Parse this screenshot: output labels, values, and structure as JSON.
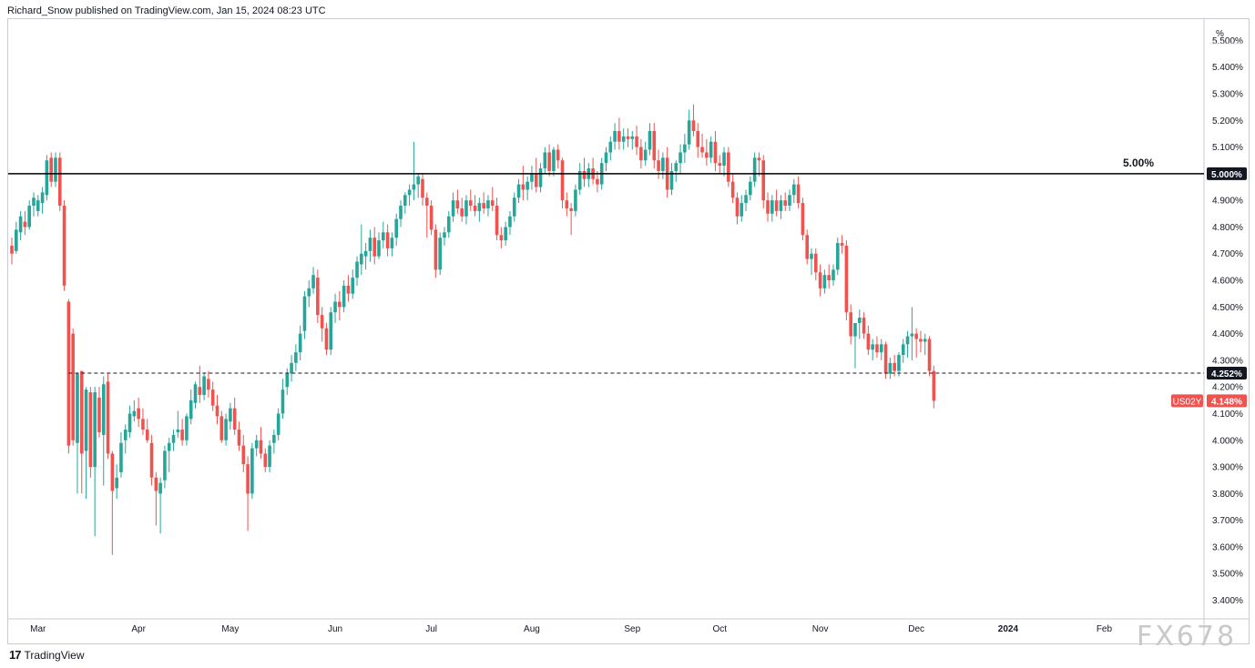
{
  "header": {
    "text": "Richard_Snow published on TradingView.com, Jan 15, 2024 08:23 UTC"
  },
  "footer": {
    "logo_text": "TradingView"
  },
  "watermark": {
    "text": "FX678"
  },
  "colors": {
    "up": "#26a69a",
    "down": "#ef5350",
    "resistance": "#000000",
    "level_line": "#131722",
    "price_tag": "#ef5350"
  },
  "chart_data": {
    "type": "candlestick",
    "symbol": "US02Y",
    "unit": "%",
    "y_unit_label": "%",
    "ylim": [
      3.33,
      5.58
    ],
    "y_ticks": [
      3.4,
      3.5,
      3.6,
      3.7,
      3.8,
      3.9,
      4.0,
      4.1,
      4.2,
      4.3,
      4.4,
      4.5,
      4.6,
      4.7,
      4.8,
      4.9,
      5.0,
      5.1,
      5.2,
      5.3,
      5.4,
      5.5
    ],
    "y_tick_labels": [
      "3.400%",
      "3.500%",
      "3.600%",
      "3.700%",
      "3.800%",
      "3.900%",
      "4.000%",
      "4.100%",
      "4.200%",
      "4.300%",
      "4.400%",
      "4.500%",
      "4.600%",
      "4.700%",
      "4.800%",
      "4.900%",
      "5.000%",
      "5.100%",
      "5.200%",
      "5.300%",
      "5.400%",
      "5.500%"
    ],
    "x_labels": [
      "Mar",
      "Apr",
      "May",
      "Jun",
      "Jul",
      "Aug",
      "Sep",
      "Oct",
      "Nov",
      "Dec",
      "2024",
      "Feb"
    ],
    "x_label_index": [
      6,
      29,
      50,
      74,
      96,
      119,
      142,
      162,
      185,
      207,
      228,
      250
    ],
    "x_index_range": [
      0,
      272
    ],
    "horizontal_lines": [
      {
        "value": 5.0,
        "label": "5.00%",
        "axis_tag": "5.000%",
        "style": "solid"
      },
      {
        "value": 4.252,
        "axis_tag": "4.252%",
        "style": "dashed"
      }
    ],
    "last_price": {
      "symbol": "US02Y",
      "value": 4.148,
      "tag": "4.148%"
    },
    "candles": [
      [
        4.73,
        4.76,
        4.66,
        4.7
      ],
      [
        4.71,
        4.82,
        4.7,
        4.79
      ],
      [
        4.78,
        4.86,
        4.75,
        4.84
      ],
      [
        4.82,
        4.86,
        4.77,
        4.8
      ],
      [
        4.8,
        4.9,
        4.79,
        4.88
      ],
      [
        4.88,
        4.93,
        4.84,
        4.91
      ],
      [
        4.86,
        4.92,
        4.84,
        4.9
      ],
      [
        4.89,
        4.95,
        4.85,
        4.93
      ],
      [
        4.92,
        5.07,
        4.9,
        5.05
      ],
      [
        5.06,
        5.08,
        4.95,
        4.97
      ],
      [
        4.97,
        5.08,
        4.95,
        5.06
      ],
      [
        5.06,
        5.08,
        4.86,
        4.88
      ],
      [
        4.88,
        4.9,
        4.56,
        4.58
      ],
      [
        4.52,
        4.53,
        3.95,
        3.98
      ],
      [
        4.4,
        4.42,
        3.98,
        4.0
      ],
      [
        3.99,
        4.25,
        3.8,
        4.25
      ],
      [
        4.26,
        4.26,
        3.8,
        3.95
      ],
      [
        3.96,
        4.2,
        3.78,
        4.19
      ],
      [
        4.18,
        4.2,
        3.86,
        3.9
      ],
      [
        3.9,
        4.2,
        3.64,
        4.18
      ],
      [
        4.16,
        4.2,
        4.01,
        4.03
      ],
      [
        4.02,
        4.24,
        3.83,
        4.21
      ],
      [
        4.22,
        4.25,
        3.93,
        3.95
      ],
      [
        3.95,
        3.96,
        3.57,
        3.81
      ],
      [
        3.82,
        3.91,
        3.78,
        3.86
      ],
      [
        3.88,
        4.03,
        3.86,
        3.99
      ],
      [
        4.0,
        4.06,
        3.95,
        4.04
      ],
      [
        4.03,
        4.13,
        4.01,
        4.1
      ],
      [
        4.09,
        4.15,
        4.07,
        4.11
      ],
      [
        4.12,
        4.16,
        4.05,
        4.08
      ],
      [
        4.08,
        4.12,
        4.02,
        4.04
      ],
      [
        4.04,
        4.08,
        3.99,
        4.0
      ],
      [
        3.99,
        4.02,
        3.83,
        3.86
      ],
      [
        3.86,
        3.88,
        3.68,
        3.81
      ],
      [
        3.8,
        3.86,
        3.65,
        3.84
      ],
      [
        3.85,
        3.98,
        3.82,
        3.96
      ],
      [
        3.96,
        4.01,
        3.88,
        3.99
      ],
      [
        3.99,
        4.04,
        3.96,
        4.02
      ],
      [
        4.03,
        4.11,
        4.01,
        4.04
      ],
      [
        4.04,
        4.08,
        3.98,
        4.0
      ],
      [
        4.0,
        4.1,
        3.98,
        4.09
      ],
      [
        4.08,
        4.19,
        4.06,
        4.15
      ],
      [
        4.14,
        4.22,
        4.12,
        4.21
      ],
      [
        4.2,
        4.28,
        4.14,
        4.17
      ],
      [
        4.17,
        4.25,
        4.15,
        4.24
      ],
      [
        4.23,
        4.26,
        4.16,
        4.19
      ],
      [
        4.19,
        4.22,
        4.11,
        4.13
      ],
      [
        4.13,
        4.17,
        4.06,
        4.09
      ],
      [
        4.09,
        4.11,
        3.99,
        4.0
      ],
      [
        4.0,
        4.1,
        3.98,
        4.08
      ],
      [
        4.07,
        4.14,
        4.04,
        4.12
      ],
      [
        4.12,
        4.16,
        4.02,
        4.04
      ],
      [
        4.04,
        4.07,
        3.96,
        3.98
      ],
      [
        3.98,
        4.02,
        3.88,
        3.91
      ],
      [
        3.91,
        3.94,
        3.66,
        3.8
      ],
      [
        3.8,
        3.99,
        3.78,
        3.97
      ],
      [
        3.97,
        4.02,
        3.94,
        4.0
      ],
      [
        4.0,
        4.05,
        3.93,
        3.95
      ],
      [
        3.95,
        3.97,
        3.88,
        3.9
      ],
      [
        3.9,
        4.0,
        3.88,
        3.98
      ],
      [
        3.99,
        4.04,
        3.95,
        4.02
      ],
      [
        4.02,
        4.12,
        4.0,
        4.1
      ],
      [
        4.1,
        4.23,
        4.08,
        4.19
      ],
      [
        4.2,
        4.27,
        4.17,
        4.25
      ],
      [
        4.25,
        4.32,
        4.22,
        4.29
      ],
      [
        4.29,
        4.36,
        4.26,
        4.33
      ],
      [
        4.33,
        4.43,
        4.3,
        4.4
      ],
      [
        4.41,
        4.56,
        4.38,
        4.54
      ],
      [
        4.54,
        4.6,
        4.5,
        4.57
      ],
      [
        4.57,
        4.65,
        4.55,
        4.62
      ],
      [
        4.61,
        4.64,
        4.44,
        4.47
      ],
      [
        4.47,
        4.5,
        4.37,
        4.42
      ],
      [
        4.42,
        4.44,
        4.32,
        4.34
      ],
      [
        4.34,
        4.5,
        4.32,
        4.48
      ],
      [
        4.48,
        4.55,
        4.44,
        4.52
      ],
      [
        4.52,
        4.56,
        4.45,
        4.5
      ],
      [
        4.5,
        4.6,
        4.48,
        4.58
      ],
      [
        4.58,
        4.62,
        4.52,
        4.55
      ],
      [
        4.55,
        4.64,
        4.53,
        4.61
      ],
      [
        4.61,
        4.69,
        4.58,
        4.67
      ],
      [
        4.66,
        4.81,
        4.62,
        4.7
      ],
      [
        4.69,
        4.74,
        4.64,
        4.71
      ],
      [
        4.71,
        4.79,
        4.67,
        4.76
      ],
      [
        4.76,
        4.8,
        4.66,
        4.69
      ],
      [
        4.69,
        4.78,
        4.68,
        4.75
      ],
      [
        4.75,
        4.82,
        4.72,
        4.78
      ],
      [
        4.78,
        4.81,
        4.69,
        4.72
      ],
      [
        4.72,
        4.78,
        4.69,
        4.76
      ],
      [
        4.76,
        4.85,
        4.73,
        4.83
      ],
      [
        4.83,
        4.9,
        4.8,
        4.88
      ],
      [
        4.88,
        4.93,
        4.85,
        4.92
      ],
      [
        4.92,
        4.96,
        4.88,
        4.94
      ],
      [
        4.94,
        5.12,
        4.9,
        4.96
      ],
      [
        4.96,
        5.0,
        4.91,
        4.99
      ],
      [
        4.98,
        5.0,
        4.88,
        4.91
      ],
      [
        4.91,
        4.93,
        4.76,
        4.88
      ],
      [
        4.88,
        4.9,
        4.77,
        4.79
      ],
      [
        4.79,
        4.81,
        4.61,
        4.64
      ],
      [
        4.64,
        4.78,
        4.62,
        4.76
      ],
      [
        4.76,
        4.8,
        4.73,
        4.78
      ],
      [
        4.78,
        4.86,
        4.76,
        4.84
      ],
      [
        4.84,
        4.93,
        4.82,
        4.9
      ],
      [
        4.9,
        4.94,
        4.85,
        4.87
      ],
      [
        4.87,
        4.91,
        4.82,
        4.84
      ],
      [
        4.84,
        4.92,
        4.81,
        4.9
      ],
      [
        4.9,
        4.94,
        4.86,
        4.88
      ],
      [
        4.88,
        4.92,
        4.84,
        4.86
      ],
      [
        4.86,
        4.91,
        4.82,
        4.89
      ],
      [
        4.89,
        4.93,
        4.85,
        4.87
      ],
      [
        4.87,
        4.92,
        4.84,
        4.9
      ],
      [
        4.9,
        4.95,
        4.86,
        4.88
      ],
      [
        4.88,
        4.91,
        4.75,
        4.77
      ],
      [
        4.77,
        4.8,
        4.72,
        4.75
      ],
      [
        4.75,
        4.82,
        4.73,
        4.8
      ],
      [
        4.8,
        4.86,
        4.77,
        4.84
      ],
      [
        4.84,
        4.93,
        4.82,
        4.91
      ],
      [
        4.91,
        4.98,
        4.89,
        4.96
      ],
      [
        4.96,
        5.03,
        4.9,
        4.94
      ],
      [
        4.94,
        4.99,
        4.9,
        4.97
      ],
      [
        4.97,
        5.03,
        4.94,
        5.0
      ],
      [
        5.0,
        5.06,
        4.93,
        4.95
      ],
      [
        4.95,
        5.04,
        4.93,
        5.02
      ],
      [
        5.02,
        5.1,
        5.0,
        5.08
      ],
      [
        5.08,
        5.11,
        4.99,
        5.01
      ],
      [
        5.01,
        5.1,
        4.99,
        5.09
      ],
      [
        5.09,
        5.11,
        5.02,
        5.05
      ],
      [
        5.05,
        5.06,
        4.87,
        4.9
      ],
      [
        4.9,
        4.93,
        4.84,
        4.87
      ],
      [
        4.87,
        4.89,
        4.77,
        4.86
      ],
      [
        4.86,
        4.96,
        4.84,
        4.94
      ],
      [
        4.94,
        5.04,
        4.92,
        5.01
      ],
      [
        5.01,
        5.06,
        4.95,
        4.98
      ],
      [
        4.98,
        5.04,
        4.95,
        5.02
      ],
      [
        5.02,
        5.06,
        4.96,
        4.98
      ],
      [
        4.98,
        5.01,
        4.93,
        4.96
      ],
      [
        4.96,
        5.06,
        4.94,
        5.04
      ],
      [
        5.04,
        5.1,
        5.01,
        5.08
      ],
      [
        5.08,
        5.14,
        5.05,
        5.12
      ],
      [
        5.12,
        5.19,
        5.09,
        5.16
      ],
      [
        5.16,
        5.21,
        5.09,
        5.12
      ],
      [
        5.12,
        5.17,
        5.09,
        5.14
      ],
      [
        5.14,
        5.17,
        5.1,
        5.13
      ],
      [
        5.13,
        5.16,
        5.09,
        5.14
      ],
      [
        5.14,
        5.18,
        5.07,
        5.1
      ],
      [
        5.1,
        5.13,
        5.02,
        5.05
      ],
      [
        5.05,
        5.12,
        5.03,
        5.09
      ],
      [
        5.09,
        5.19,
        5.07,
        5.16
      ],
      [
        5.16,
        5.19,
        5.02,
        5.05
      ],
      [
        5.05,
        5.09,
        4.98,
        5.01
      ],
      [
        5.01,
        5.08,
        4.98,
        5.06
      ],
      [
        5.06,
        5.1,
        4.91,
        4.94
      ],
      [
        4.94,
        5.04,
        4.92,
        5.01
      ],
      [
        5.01,
        5.05,
        4.97,
        5.04
      ],
      [
        5.04,
        5.11,
        5.0,
        5.08
      ],
      [
        5.08,
        5.15,
        5.04,
        5.11
      ],
      [
        5.11,
        5.24,
        5.09,
        5.2
      ],
      [
        5.2,
        5.26,
        5.14,
        5.16
      ],
      [
        5.16,
        5.19,
        5.06,
        5.1
      ],
      [
        5.1,
        5.15,
        5.06,
        5.08
      ],
      [
        5.08,
        5.13,
        5.03,
        5.06
      ],
      [
        5.06,
        5.14,
        5.04,
        5.12
      ],
      [
        5.12,
        5.16,
        5.01,
        5.04
      ],
      [
        5.04,
        5.07,
        5.0,
        5.03
      ],
      [
        5.03,
        5.1,
        4.99,
        5.08
      ],
      [
        5.08,
        5.1,
        4.95,
        4.97
      ],
      [
        4.97,
        5.0,
        4.89,
        4.91
      ],
      [
        4.91,
        4.93,
        4.81,
        4.84
      ],
      [
        4.84,
        4.92,
        4.82,
        4.89
      ],
      [
        4.89,
        4.94,
        4.86,
        4.92
      ],
      [
        4.92,
        4.99,
        4.9,
        4.97
      ],
      [
        4.97,
        5.08,
        4.95,
        5.06
      ],
      [
        5.06,
        5.08,
        4.99,
        5.05
      ],
      [
        5.05,
        5.07,
        4.87,
        4.9
      ],
      [
        4.9,
        4.93,
        4.82,
        4.85
      ],
      [
        4.85,
        4.92,
        4.82,
        4.9
      ],
      [
        4.9,
        4.94,
        4.84,
        4.86
      ],
      [
        4.86,
        4.92,
        4.83,
        4.9
      ],
      [
        4.9,
        4.93,
        4.86,
        4.88
      ],
      [
        4.88,
        4.94,
        4.86,
        4.92
      ],
      [
        4.92,
        4.98,
        4.89,
        4.96
      ],
      [
        4.96,
        4.99,
        4.87,
        4.89
      ],
      [
        4.89,
        4.91,
        4.75,
        4.77
      ],
      [
        4.77,
        4.79,
        4.66,
        4.68
      ],
      [
        4.68,
        4.72,
        4.62,
        4.7
      ],
      [
        4.7,
        4.72,
        4.6,
        4.63
      ],
      [
        4.63,
        4.66,
        4.54,
        4.57
      ],
      [
        4.57,
        4.64,
        4.55,
        4.62
      ],
      [
        4.62,
        4.66,
        4.57,
        4.6
      ],
      [
        4.6,
        4.66,
        4.58,
        4.64
      ],
      [
        4.64,
        4.76,
        4.62,
        4.74
      ],
      [
        4.74,
        4.77,
        4.7,
        4.73
      ],
      [
        4.73,
        4.75,
        4.45,
        4.48
      ],
      [
        4.48,
        4.51,
        4.36,
        4.39
      ],
      [
        4.39,
        4.42,
        4.27,
        4.44
      ],
      [
        4.44,
        4.49,
        4.38,
        4.46
      ],
      [
        4.46,
        4.48,
        4.38,
        4.4
      ],
      [
        4.4,
        4.43,
        4.32,
        4.34
      ],
      [
        4.34,
        4.38,
        4.3,
        4.36
      ],
      [
        4.36,
        4.39,
        4.31,
        4.33
      ],
      [
        4.33,
        4.38,
        4.3,
        4.36
      ],
      [
        4.36,
        4.37,
        4.23,
        4.25
      ],
      [
        4.25,
        4.31,
        4.23,
        4.29
      ],
      [
        4.29,
        4.32,
        4.24,
        4.26
      ],
      [
        4.26,
        4.33,
        4.24,
        4.32
      ],
      [
        4.32,
        4.38,
        4.29,
        4.36
      ],
      [
        4.36,
        4.41,
        4.31,
        4.39
      ],
      [
        4.39,
        4.5,
        4.3,
        4.4
      ],
      [
        4.4,
        4.42,
        4.31,
        4.38
      ],
      [
        4.38,
        4.41,
        4.33,
        4.37
      ],
      [
        4.37,
        4.4,
        4.32,
        4.38
      ],
      [
        4.38,
        4.39,
        4.24,
        4.26
      ],
      [
        4.26,
        4.28,
        4.12,
        4.148
      ]
    ]
  }
}
